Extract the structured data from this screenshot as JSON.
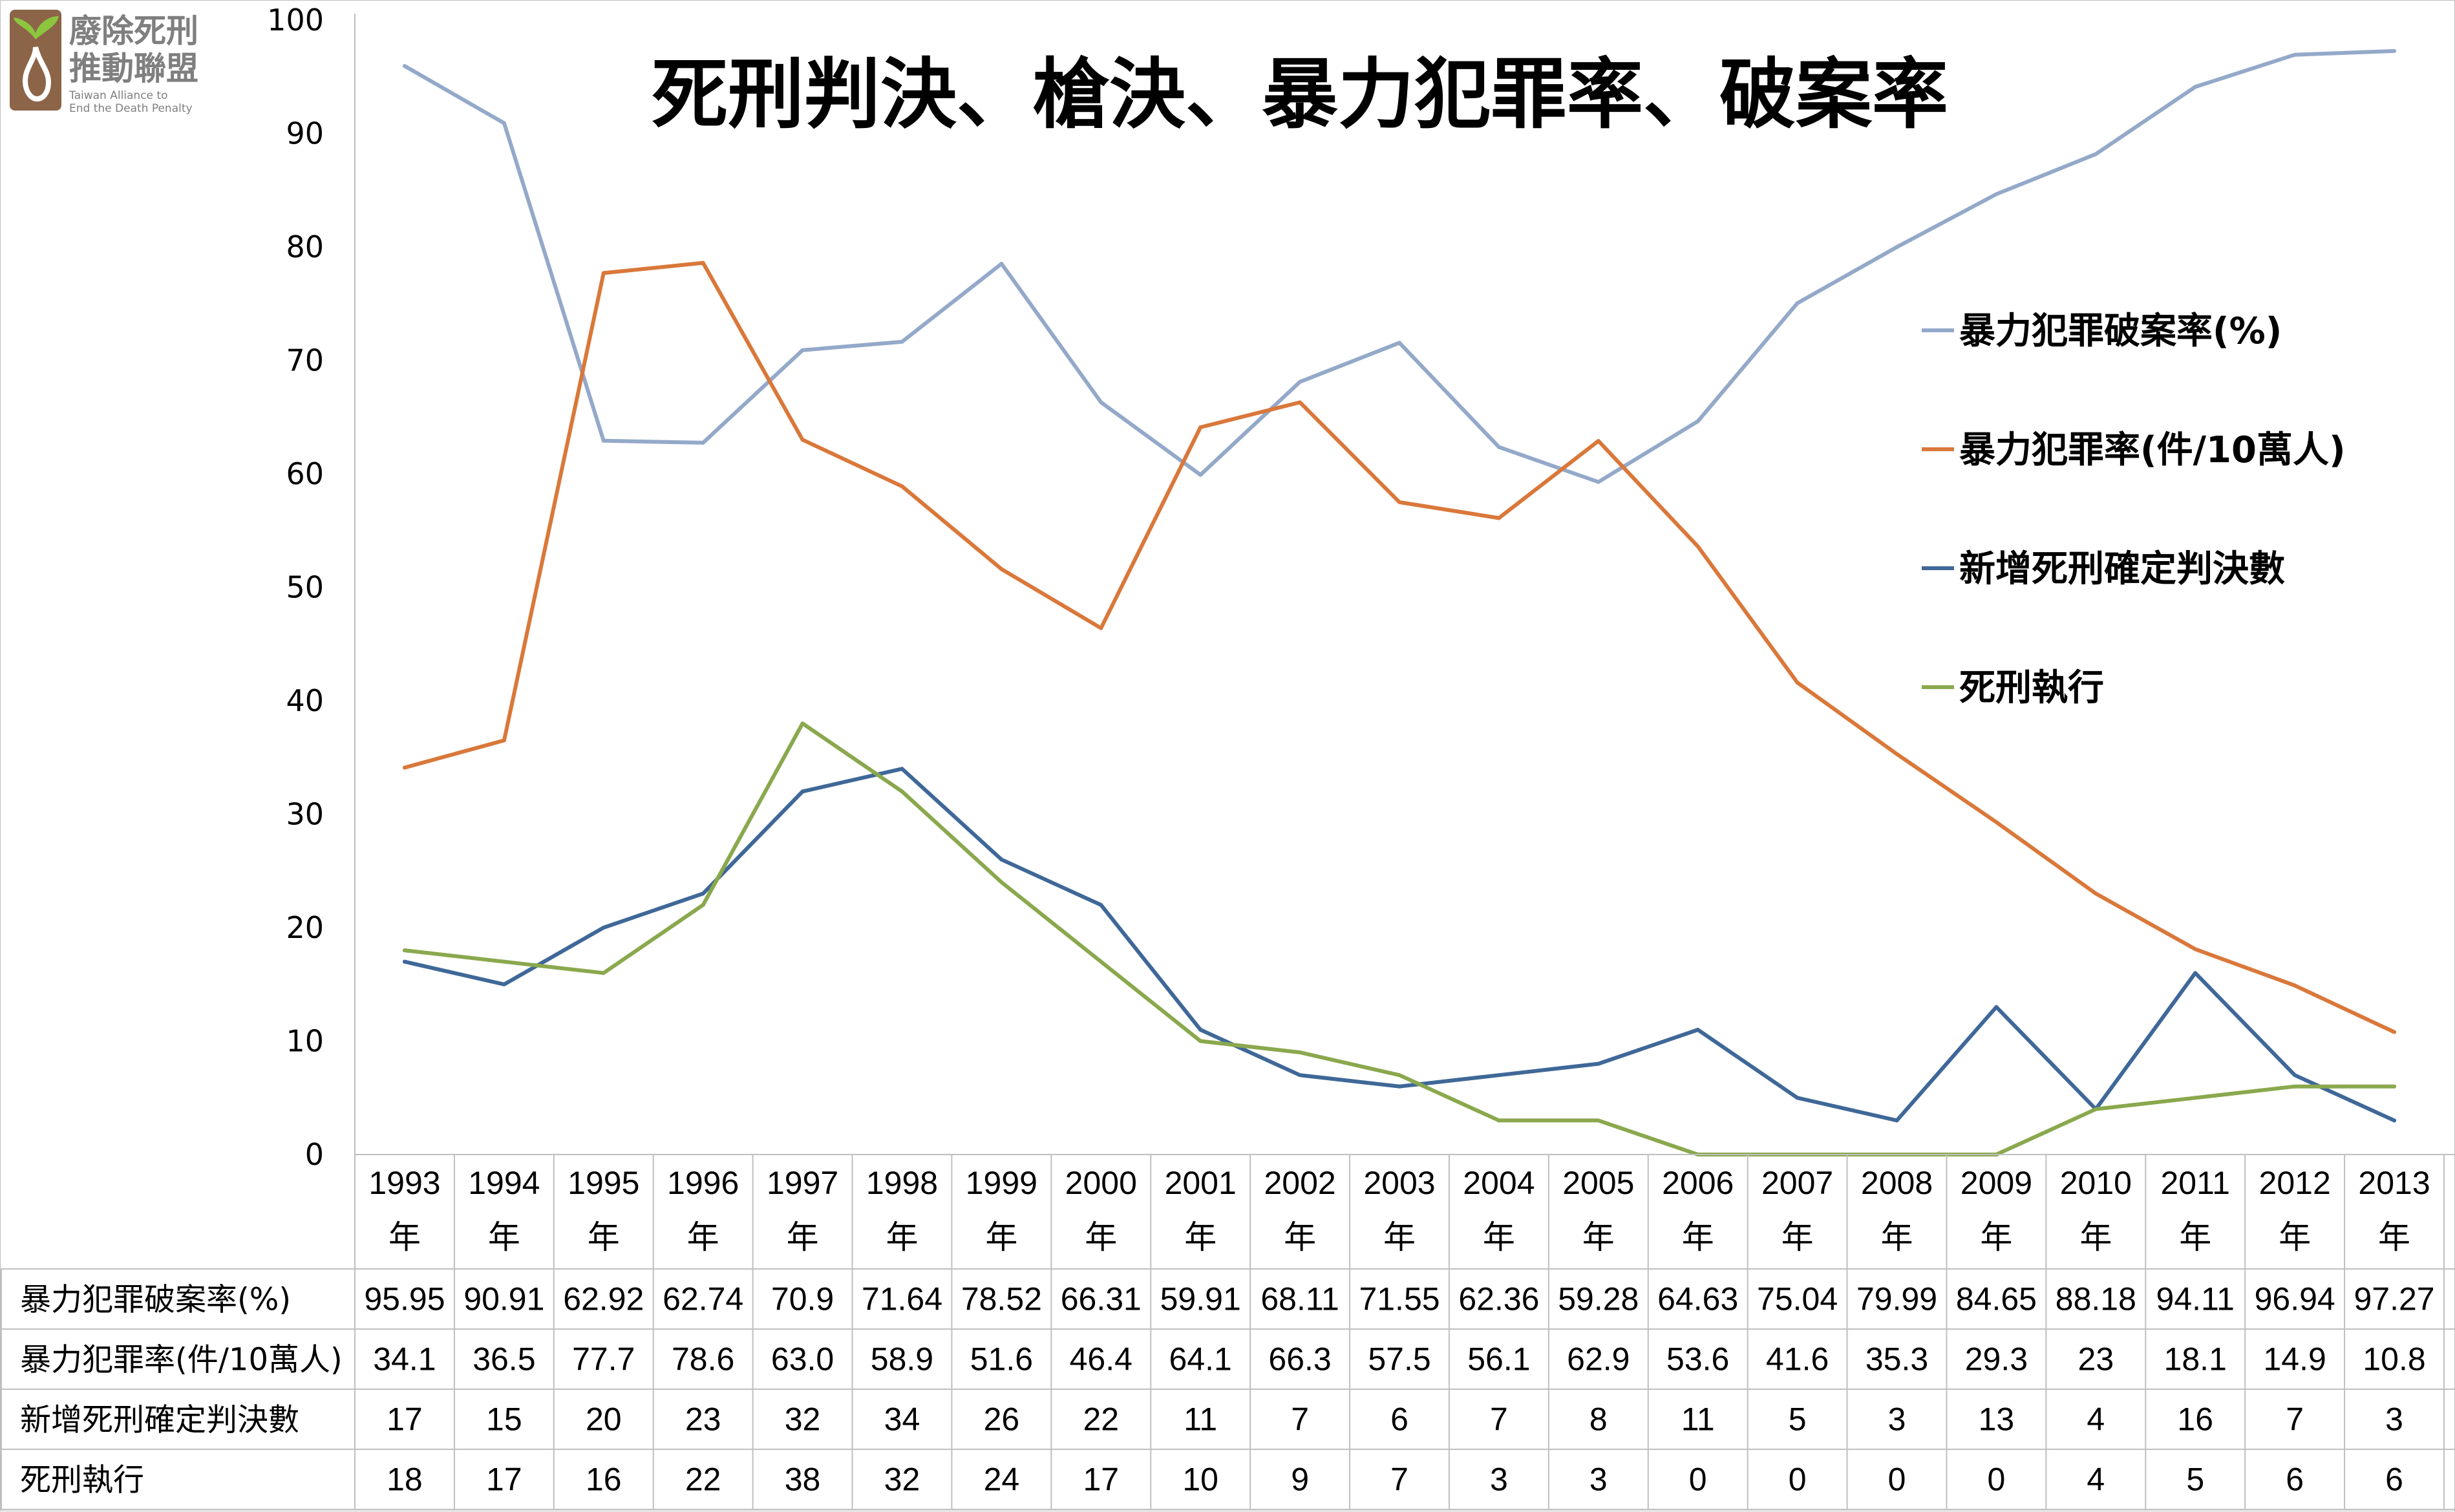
{
  "logo": {
    "line1": "廢除死刑",
    "line2": "推動聯盟",
    "english1": "Taiwan Alliance to",
    "english2": "End the Death Penalty"
  },
  "chart_data": {
    "type": "line",
    "title": "死刑判決、槍決、暴力犯罪率、破案率",
    "ylim": [
      0,
      100
    ],
    "yticks": [
      0,
      10,
      20,
      30,
      40,
      50,
      60,
      70,
      80,
      90,
      100
    ],
    "grid": false,
    "legend_position": "right",
    "categories": [
      [
        "1993",
        "年"
      ],
      [
        "1994",
        "年"
      ],
      [
        "1995",
        "年"
      ],
      [
        "1996",
        "年"
      ],
      [
        "1997",
        "年"
      ],
      [
        "1998",
        "年"
      ],
      [
        "1999",
        "年"
      ],
      [
        "2000",
        "年"
      ],
      [
        "2001",
        "年"
      ],
      [
        "2002",
        "年"
      ],
      [
        "2003",
        "年"
      ],
      [
        "2004",
        "年"
      ],
      [
        "2005",
        "年"
      ],
      [
        "2006",
        "年"
      ],
      [
        "2007",
        "年"
      ],
      [
        "2008",
        "年"
      ],
      [
        "2009",
        "年"
      ],
      [
        "2010",
        "年"
      ],
      [
        "2011",
        "年"
      ],
      [
        "2012",
        "年"
      ],
      [
        "2013",
        "年"
      ]
    ],
    "series": [
      {
        "name": "暴力犯罪破案率(%)",
        "color": "#94a9c9",
        "values": [
          95.95,
          90.91,
          62.92,
          62.74,
          70.9,
          71.64,
          78.52,
          66.31,
          59.91,
          68.11,
          71.55,
          62.36,
          59.28,
          64.63,
          75.04,
          79.99,
          84.65,
          88.18,
          94.11,
          96.94,
          97.27
        ],
        "labels": [
          "95.95",
          "90.91",
          "62.92",
          "62.74",
          "70.9",
          "71.64",
          "78.52",
          "66.31",
          "59.91",
          "68.11",
          "71.55",
          "62.36",
          "59.28",
          "64.63",
          "75.04",
          "79.99",
          "84.65",
          "88.18",
          "94.11",
          "96.94",
          "97.27"
        ]
      },
      {
        "name": "暴力犯罪率(件/10萬人)",
        "color": "#d9783a",
        "values": [
          34.1,
          36.5,
          77.7,
          78.6,
          63.0,
          58.9,
          51.6,
          46.4,
          64.1,
          66.3,
          57.5,
          56.1,
          62.9,
          53.6,
          41.6,
          35.3,
          29.3,
          23,
          18.1,
          14.9,
          10.8
        ],
        "labels": [
          "34.1",
          "36.5",
          "77.7",
          "78.6",
          "63.0",
          "58.9",
          "51.6",
          "46.4",
          "64.1",
          "66.3",
          "57.5",
          "56.1",
          "62.9",
          "53.6",
          "41.6",
          "35.3",
          "29.3",
          "23",
          "18.1",
          "14.9",
          "10.8"
        ]
      },
      {
        "name": "新增死刑確定判決數",
        "color": "#3f6898",
        "values": [
          17,
          15,
          20,
          23,
          32,
          34,
          26,
          22,
          11,
          7,
          6,
          7,
          8,
          11,
          5,
          3,
          13,
          4,
          16,
          7,
          3
        ],
        "labels": [
          "17",
          "15",
          "20",
          "23",
          "32",
          "34",
          "26",
          "22",
          "11",
          "7",
          "6",
          "7",
          "8",
          "11",
          "5",
          "3",
          "13",
          "4",
          "16",
          "7",
          "3"
        ]
      },
      {
        "name": "死刑執行",
        "color": "#8aa84d",
        "values": [
          18,
          17,
          16,
          22,
          38,
          32,
          24,
          17,
          10,
          9,
          7,
          3,
          3,
          0,
          0,
          0,
          0,
          4,
          5,
          6,
          6
        ],
        "labels": [
          "18",
          "17",
          "16",
          "22",
          "38",
          "32",
          "24",
          "17",
          "10",
          "9",
          "7",
          "3",
          "3",
          "0",
          "0",
          "0",
          "0",
          "4",
          "5",
          "6",
          "6"
        ]
      }
    ]
  }
}
